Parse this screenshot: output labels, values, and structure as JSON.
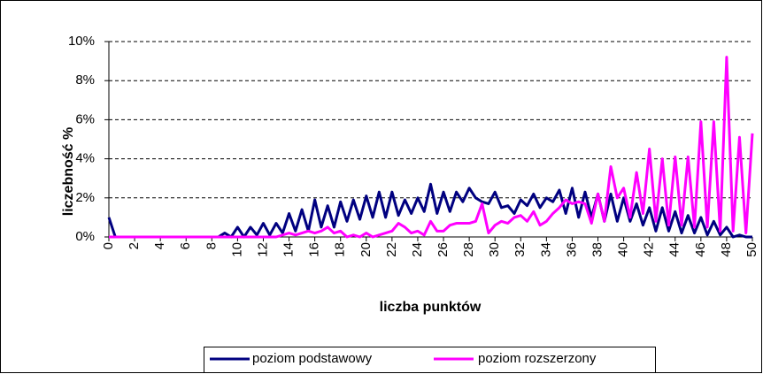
{
  "chart_data": {
    "type": "line",
    "y_label": "liczebność %",
    "x_label": "liczba punktów",
    "x": [
      0,
      0.5,
      1,
      1.5,
      2,
      2.5,
      3,
      3.5,
      4,
      4.5,
      5,
      5.5,
      6,
      6.5,
      7,
      7.5,
      8,
      8.5,
      9,
      9.5,
      10,
      10.5,
      11,
      11.5,
      12,
      12.5,
      13,
      13.5,
      14,
      14.5,
      15,
      15.5,
      16,
      16.5,
      17,
      17.5,
      18,
      18.5,
      19,
      19.5,
      20,
      20.5,
      21,
      21.5,
      22,
      22.5,
      23,
      23.5,
      24,
      24.5,
      25,
      25.5,
      26,
      26.5,
      27,
      27.5,
      28,
      28.5,
      29,
      29.5,
      30,
      30.5,
      31,
      31.5,
      32,
      32.5,
      33,
      33.5,
      34,
      34.5,
      35,
      35.5,
      36,
      36.5,
      37,
      37.5,
      38,
      38.5,
      39,
      39.5,
      40,
      40.5,
      41,
      41.5,
      42,
      42.5,
      43,
      43.5,
      44,
      44.5,
      45,
      45.5,
      46,
      46.5,
      47,
      47.5,
      48,
      48.5,
      49,
      49.5,
      50
    ],
    "series": [
      {
        "name": "poziom podstawowy",
        "color": "#000080",
        "values": [
          1.0,
          0,
          0,
          0,
          0,
          0,
          0,
          0,
          0,
          0,
          0,
          0,
          0,
          0,
          0,
          0,
          0,
          0,
          0.2,
          0,
          0.5,
          0,
          0.5,
          0.1,
          0.7,
          0.1,
          0.7,
          0.2,
          1.2,
          0.3,
          1.4,
          0.3,
          1.9,
          0.5,
          1.6,
          0.5,
          1.8,
          0.8,
          1.9,
          0.9,
          2.1,
          1.0,
          2.3,
          1.0,
          2.3,
          1.1,
          1.9,
          1.2,
          2.0,
          1.3,
          2.7,
          1.2,
          2.3,
          1.3,
          2.3,
          1.8,
          2.5,
          2.0,
          1.8,
          1.7,
          2.3,
          1.5,
          1.6,
          1.2,
          1.9,
          1.6,
          2.2,
          1.5,
          2.0,
          1.8,
          2.4,
          1.2,
          2.5,
          1.0,
          2.3,
          1.0,
          2.2,
          0.8,
          2.2,
          0.8,
          2.0,
          0.8,
          1.7,
          0.6,
          1.5,
          0.3,
          1.5,
          0.3,
          1.3,
          0.2,
          1.1,
          0.2,
          1.0,
          0.1,
          0.8,
          0.1,
          0.5,
          0,
          0.1,
          0,
          0
        ]
      },
      {
        "name": "poziom rozszerzony",
        "color": "#ff00ff",
        "values": [
          0,
          0,
          0,
          0,
          0,
          0,
          0,
          0,
          0,
          0,
          0,
          0,
          0,
          0,
          0,
          0,
          0,
          0,
          0,
          0,
          0,
          0,
          0,
          0,
          0,
          0,
          0,
          0.1,
          0.2,
          0.1,
          0.2,
          0.3,
          0.2,
          0.3,
          0.5,
          0.2,
          0.3,
          0,
          0.1,
          0,
          0.2,
          0,
          0.1,
          0.2,
          0.3,
          0.7,
          0.5,
          0.2,
          0.3,
          0.1,
          0.8,
          0.3,
          0.3,
          0.6,
          0.7,
          0.7,
          0.7,
          0.8,
          1.7,
          0.2,
          0.6,
          0.8,
          0.7,
          1.0,
          1.1,
          0.8,
          1.3,
          0.6,
          0.8,
          1.2,
          1.5,
          1.9,
          1.7,
          1.8,
          1.7,
          0.7,
          2.2,
          0.8,
          3.6,
          2.0,
          2.5,
          1.0,
          3.3,
          1.2,
          4.5,
          0.8,
          4.0,
          0.6,
          4.1,
          0.6,
          4.1,
          0.5,
          5.9,
          0.5,
          5.9,
          0.3,
          9.2,
          0.3,
          5.1,
          0.2,
          5.3
        ]
      }
    ],
    "xlim": [
      0,
      50
    ],
    "xticks": [
      0,
      2,
      4,
      6,
      8,
      10,
      12,
      14,
      16,
      18,
      20,
      22,
      24,
      26,
      28,
      30,
      32,
      34,
      36,
      38,
      40,
      42,
      44,
      46,
      48,
      50
    ],
    "ylim": [
      0,
      10
    ],
    "yticks": [
      {
        "value": 0,
        "label": "0%"
      },
      {
        "value": 2,
        "label": "2%"
      },
      {
        "value": 4,
        "label": "4%"
      },
      {
        "value": 6,
        "label": "6%"
      },
      {
        "value": 8,
        "label": "8%"
      },
      {
        "value": 10,
        "label": "10%"
      }
    ],
    "grid": true,
    "legend": "bottom"
  }
}
